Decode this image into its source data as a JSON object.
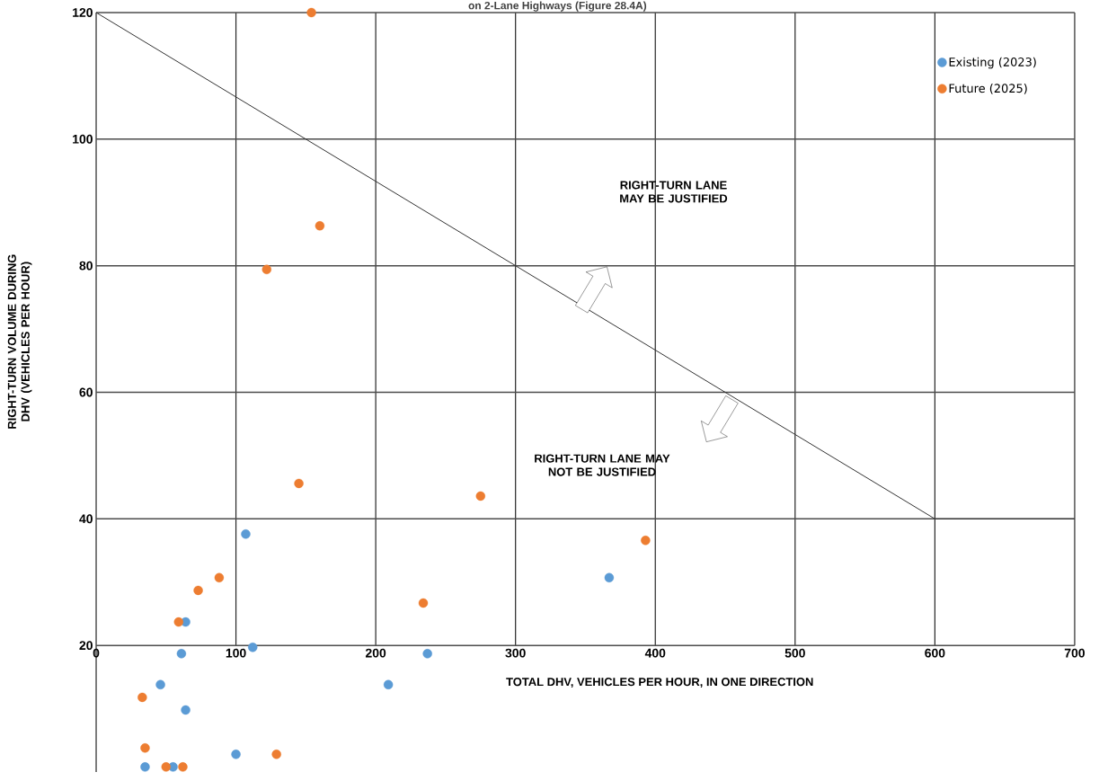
{
  "chart_data": {
    "type": "scatter",
    "title": "on 2-Lane Highways (Figure 28.4A)",
    "xlabel": "TOTAL DHV, VEHICLES PER HOUR, IN ONE DIRECTION",
    "ylabel": "RIGHT-TURN VOLUME DURING DHV (VEHICLES PER HOUR)",
    "annotations": [
      "RIGHT-TURN LANE MAY BE JUSTIFIED",
      "RIGHT-TURN LANE MAY NOT BE JUSTIFIED"
    ],
    "xlim": [
      0,
      700
    ],
    "ylim": [
      0,
      120
    ],
    "xticks": [
      0,
      100,
      200,
      300,
      400,
      500,
      600,
      700
    ],
    "yticks": [
      20,
      40,
      60,
      80,
      100,
      120
    ],
    "grid": true,
    "legend": "top right",
    "marker": "circle",
    "series": [
      {
        "name": "Existing (2023)",
        "color": "#5b9bd5",
        "x": [
          107,
          112,
          64,
          61,
          46,
          64,
          35,
          55,
          100,
          209,
          237,
          367
        ],
        "values": [
          37.6,
          19.7,
          23.7,
          18.7,
          13.8,
          9.8,
          0.8,
          0.8,
          2.8,
          13.8,
          18.7,
          30.7
        ]
      },
      {
        "name": "Future (2025)",
        "color": "#ed7d31",
        "x": [
          154,
          160,
          122,
          145,
          88,
          73,
          59,
          33,
          35,
          50,
          62,
          129,
          234,
          275,
          393
        ],
        "values": [
          120,
          86.3,
          79.4,
          45.6,
          30.7,
          28.7,
          23.7,
          11.8,
          3.8,
          0.8,
          0.8,
          2.8,
          26.7,
          43.6,
          36.6
        ]
      },
      {
        "type": "line",
        "color": "#333333",
        "marker": "none",
        "x": [
          0,
          600,
          700
        ],
        "values": [
          120,
          40,
          40
        ]
      }
    ]
  }
}
